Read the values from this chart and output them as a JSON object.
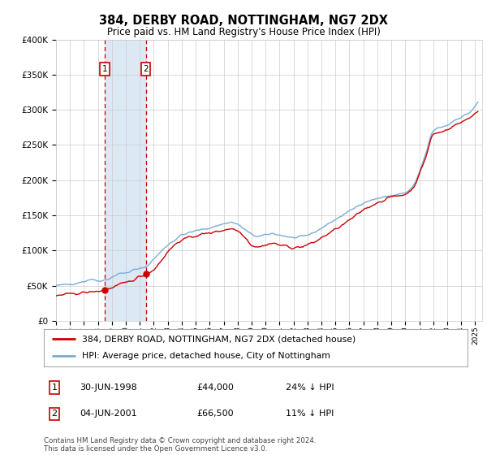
{
  "title": "384, DERBY ROAD, NOTTINGHAM, NG7 2DX",
  "subtitle": "Price paid vs. HM Land Registry's House Price Index (HPI)",
  "legend_line1": "384, DERBY ROAD, NOTTINGHAM, NG7 2DX (detached house)",
  "legend_line2": "HPI: Average price, detached house, City of Nottingham",
  "footnote": "Contains HM Land Registry data © Crown copyright and database right 2024.\nThis data is licensed under the Open Government Licence v3.0.",
  "transactions": [
    {
      "num": 1,
      "date": "30-JUN-1998",
      "price": "£44,000",
      "hpi": "24% ↓ HPI",
      "year": 1998.5
    },
    {
      "num": 2,
      "date": "04-JUN-2001",
      "price": "£66,500",
      "hpi": "11% ↓ HPI",
      "year": 2001.42
    }
  ],
  "sale_prices": [
    44000,
    66500
  ],
  "sale_years": [
    1998.5,
    2001.42
  ],
  "hpi_line_color": "#7aacd6",
  "price_line_color": "#cc0000",
  "marker_color": "#cc0000",
  "vline_color": "#cc0000",
  "highlight_color": "#dde8f5",
  "ylim": [
    0,
    400000
  ],
  "yticks": [
    0,
    50000,
    100000,
    150000,
    200000,
    250000,
    300000,
    350000,
    400000
  ],
  "ytick_labels": [
    "£0",
    "£50K",
    "£100K",
    "£150K",
    "£200K",
    "£250K",
    "£300K",
    "£350K",
    "£400K"
  ],
  "xmin": 1995.0,
  "xmax": 2025.5,
  "background_color": "#ffffff",
  "grid_color": "#cccccc"
}
